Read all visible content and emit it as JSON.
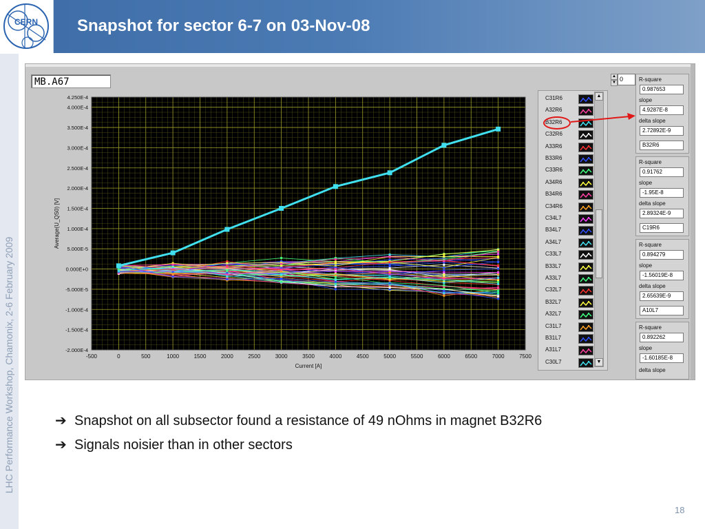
{
  "slide": {
    "title": "Snapshot for sector 6-7 on 03-Nov-08",
    "side_text": "LHC Performance Workshop, Chamonix, 2-6 February 2009",
    "page_number": "18",
    "logo_text": "CERN",
    "bullets": [
      "Snapshot on all subsector found a resistance of 49 nOhms in magnet B32R6",
      "Signals noisier than in other sectors"
    ],
    "colors": {
      "title_band": "#4c7bb4",
      "highlight_series": "#40e0f0",
      "annotation": "#e01818",
      "plot_bg": "#000000",
      "grid": "#9a9a2a"
    }
  },
  "app": {
    "magnet_name": "MB.A67",
    "index_value": "0",
    "legend": [
      "C31R6",
      "A32R6",
      "B32R6",
      "C32R6",
      "A33R6",
      "B33R6",
      "C33R6",
      "A34R6",
      "B34R6",
      "C34R6",
      "C34L7",
      "B34L7",
      "A34L7",
      "C33L7",
      "B33L7",
      "A33L7",
      "C32L7",
      "B32L7",
      "A32L7",
      "C31L7",
      "B31L7",
      "A31L7",
      "C30L7"
    ],
    "legend_colors": [
      "#3050ff",
      "#ff40a0",
      "#40e0f0",
      "#ffffff",
      "#ff3030",
      "#3050ff",
      "#40ff80",
      "#ffff40",
      "#ff40a0",
      "#ffa020",
      "#ff40ff",
      "#3050ff",
      "#40e0f0",
      "#ffffff",
      "#ffff40",
      "#40ff80",
      "#ff3030",
      "#ffff40",
      "#40ff80",
      "#ffa020",
      "#3050ff",
      "#ff40a0",
      "#40e0f0"
    ],
    "fit_groups": [
      {
        "r_label": "R-square",
        "r_value": "0.987653",
        "s_label": "slope",
        "s_value": "4.9287E-8",
        "d_label": "delta slope",
        "d_value": "2.72892E-9",
        "name": "B32R6"
      },
      {
        "r_label": "R-square",
        "r_value": "0.91762",
        "s_label": "slope",
        "s_value": "-1.95E-8",
        "d_label": "delta slope",
        "d_value": "2.89324E-9",
        "name": "C19R6"
      },
      {
        "r_label": "R-square",
        "r_value": "0.894279",
        "s_label": "slope",
        "s_value": "-1.56019E-8",
        "d_label": "delta slope",
        "d_value": "2.65639E-9",
        "name": "A10L7"
      },
      {
        "r_label": "R-square",
        "r_value": "0.892262",
        "s_label": "slope",
        "s_value": "-1.60185E-8",
        "d_label": "delta slope",
        "d_value": ""
      }
    ]
  },
  "chart_data": {
    "type": "line",
    "xlabel": "Current [A]",
    "ylabel": "Average(U_QS0) [V]",
    "xlim": [
      -500,
      7500
    ],
    "ylim": [
      -0.0002,
      0.000425
    ],
    "x_ticks": [
      "-500",
      "0",
      "500",
      "1000",
      "1500",
      "2000",
      "2500",
      "3000",
      "3500",
      "4000",
      "4500",
      "5000",
      "5500",
      "6000",
      "6500",
      "7000",
      "7500"
    ],
    "y_ticks": [
      "4.250E-4",
      "4.000E-4",
      "3.500E-4",
      "3.000E-4",
      "2.500E-4",
      "2.000E-4",
      "1.500E-4",
      "1.000E-4",
      "5.000E-5",
      "0.000E+0",
      "-5.000E-5",
      "-1.000E-4",
      "-1.500E-4",
      "-2.000E-4"
    ],
    "y_tick_values": [
      0.000425,
      0.0004,
      0.00035,
      0.0003,
      0.00025,
      0.0002,
      0.00015,
      0.0001,
      5e-05,
      0,
      -5e-05,
      -0.0001,
      -0.00015,
      -0.0002
    ],
    "x": [
      0,
      1000,
      2000,
      3000,
      4000,
      5000,
      6000,
      7000
    ],
    "highlight_series": {
      "name": "B32R6",
      "color": "#40e0f0",
      "values": [
        8e-06,
        4e-05,
        9.8e-05,
        0.00015,
        0.000204,
        0.000238,
        0.000306,
        0.000346
      ]
    },
    "noise_series": {
      "count": 48,
      "band": [
        -0.00014,
        0.000105
      ]
    },
    "grid": true
  }
}
